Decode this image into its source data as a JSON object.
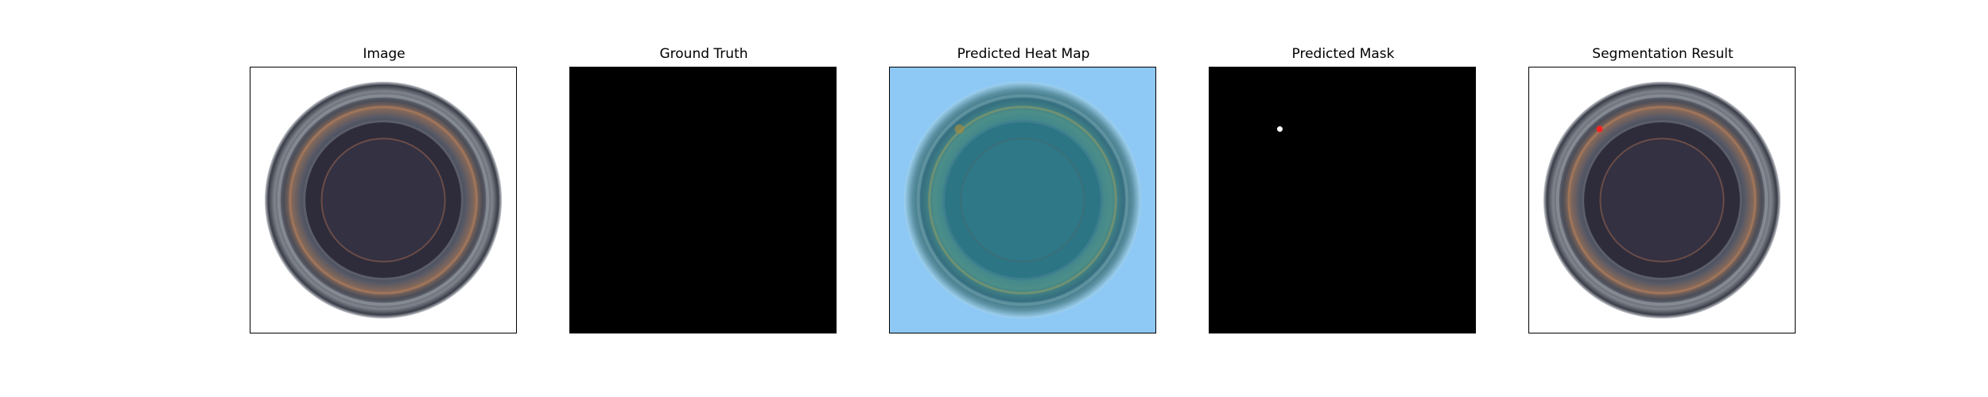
{
  "panels": [
    {
      "title": "Image"
    },
    {
      "title": "Ground Truth"
    },
    {
      "title": "Predicted Heat Map"
    },
    {
      "title": "Predicted Mask"
    },
    {
      "title": "Segmentation Result"
    }
  ],
  "colors": {
    "mask_background": "#000000",
    "mask_defect": "#ffffff",
    "segmentation_marker": "#ff2020",
    "heatmap_bg": "#8ec8f4"
  }
}
